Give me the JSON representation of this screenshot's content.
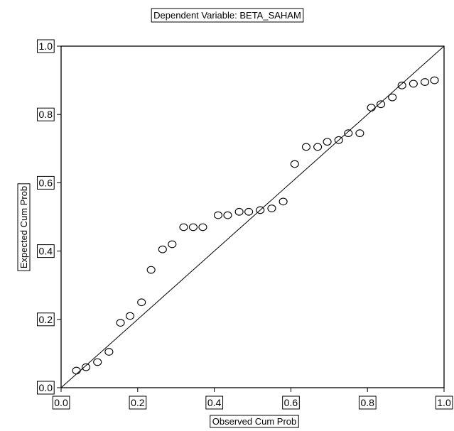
{
  "chart_data": {
    "type": "scatter",
    "title": "Dependent Variable: BETA_SAHAM",
    "xlabel": "Observed Cum Prob",
    "ylabel": "Expected Cum Prob",
    "xlim": [
      0.0,
      1.0
    ],
    "ylim": [
      0.0,
      1.0
    ],
    "xticks": [
      "0.0",
      "0.2",
      "0.4",
      "0.6",
      "0.8",
      "1.0"
    ],
    "yticks": [
      "0.0",
      "0.2",
      "0.4",
      "0.6",
      "0.8",
      "1.0"
    ],
    "grid": false,
    "legend": "none",
    "reference_line": {
      "from": [
        0.0,
        0.0
      ],
      "to": [
        1.0,
        1.0
      ]
    },
    "points": [
      {
        "x": 0.04,
        "y": 0.05
      },
      {
        "x": 0.065,
        "y": 0.06
      },
      {
        "x": 0.095,
        "y": 0.075
      },
      {
        "x": 0.125,
        "y": 0.105
      },
      {
        "x": 0.155,
        "y": 0.19
      },
      {
        "x": 0.18,
        "y": 0.21
      },
      {
        "x": 0.21,
        "y": 0.25
      },
      {
        "x": 0.235,
        "y": 0.345
      },
      {
        "x": 0.265,
        "y": 0.405
      },
      {
        "x": 0.29,
        "y": 0.42
      },
      {
        "x": 0.32,
        "y": 0.47
      },
      {
        "x": 0.345,
        "y": 0.47
      },
      {
        "x": 0.37,
        "y": 0.47
      },
      {
        "x": 0.41,
        "y": 0.505
      },
      {
        "x": 0.435,
        "y": 0.505
      },
      {
        "x": 0.465,
        "y": 0.515
      },
      {
        "x": 0.49,
        "y": 0.515
      },
      {
        "x": 0.52,
        "y": 0.52
      },
      {
        "x": 0.55,
        "y": 0.525
      },
      {
        "x": 0.58,
        "y": 0.545
      },
      {
        "x": 0.61,
        "y": 0.655
      },
      {
        "x": 0.64,
        "y": 0.705
      },
      {
        "x": 0.67,
        "y": 0.705
      },
      {
        "x": 0.695,
        "y": 0.72
      },
      {
        "x": 0.725,
        "y": 0.725
      },
      {
        "x": 0.75,
        "y": 0.745
      },
      {
        "x": 0.78,
        "y": 0.745
      },
      {
        "x": 0.81,
        "y": 0.82
      },
      {
        "x": 0.835,
        "y": 0.83
      },
      {
        "x": 0.865,
        "y": 0.85
      },
      {
        "x": 0.89,
        "y": 0.885
      },
      {
        "x": 0.92,
        "y": 0.89
      },
      {
        "x": 0.95,
        "y": 0.895
      },
      {
        "x": 0.975,
        "y": 0.9
      }
    ]
  },
  "colors": {
    "foreground": "#000000",
    "background": "#ffffff"
  }
}
